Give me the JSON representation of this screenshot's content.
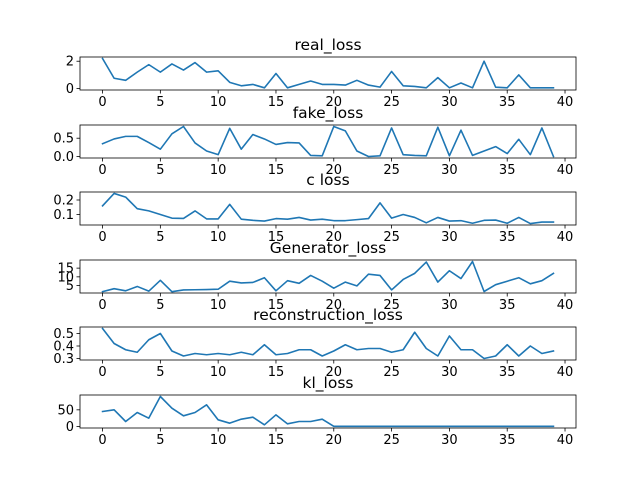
{
  "figure": {
    "line_color": "#1f77b4",
    "background": "#ffffff"
  },
  "chart_data": [
    {
      "type": "line",
      "title": "real_loss",
      "xlabel": "",
      "ylabel": "",
      "x": [
        0,
        1,
        2,
        3,
        4,
        5,
        6,
        7,
        8,
        9,
        10,
        11,
        12,
        13,
        14,
        15,
        16,
        17,
        18,
        19,
        20,
        21,
        22,
        23,
        24,
        25,
        26,
        27,
        28,
        29,
        30,
        31,
        32,
        33,
        34,
        35,
        36,
        37,
        38,
        39
      ],
      "values": [
        2.2,
        0.75,
        0.6,
        1.2,
        1.75,
        1.2,
        1.8,
        1.35,
        1.9,
        1.2,
        1.3,
        0.45,
        0.2,
        0.3,
        0.05,
        1.1,
        0.05,
        0.3,
        0.55,
        0.3,
        0.3,
        0.25,
        0.6,
        0.25,
        0.1,
        1.25,
        0.2,
        0.15,
        0.05,
        0.8,
        0.05,
        0.4,
        0.05,
        2.0,
        0.1,
        0.05,
        1.0,
        0.05,
        0.05,
        0.05
      ],
      "xlim": [
        -1.95,
        40.95
      ],
      "ylim": [
        -0.11,
        2.31
      ],
      "xticks": [
        0,
        5,
        10,
        15,
        20,
        25,
        30,
        35,
        40
      ],
      "yticks": [
        0,
        2
      ]
    },
    {
      "type": "line",
      "title": "fake_loss",
      "xlabel": "",
      "ylabel": "",
      "x": [
        0,
        1,
        2,
        3,
        4,
        5,
        6,
        7,
        8,
        9,
        10,
        11,
        12,
        13,
        14,
        15,
        16,
        17,
        18,
        19,
        20,
        21,
        22,
        23,
        24,
        25,
        26,
        27,
        28,
        29,
        30,
        31,
        32,
        33,
        34,
        35,
        36,
        37,
        38,
        39
      ],
      "values": [
        0.35,
        0.48,
        0.55,
        0.55,
        0.38,
        0.2,
        0.62,
        0.82,
        0.37,
        0.15,
        0.05,
        0.77,
        0.2,
        0.6,
        0.48,
        0.33,
        0.38,
        0.37,
        0.03,
        0.02,
        0.82,
        0.7,
        0.15,
        0.0,
        0.02,
        0.78,
        0.05,
        0.03,
        0.02,
        0.8,
        0.02,
        0.72,
        0.03,
        0.15,
        0.27,
        0.08,
        0.47,
        0.05,
        0.78,
        0.0
      ],
      "xlim": [
        -1.95,
        40.95
      ],
      "ylim": [
        -0.041,
        0.861
      ],
      "xticks": [
        0,
        5,
        10,
        15,
        20,
        25,
        30,
        35,
        40
      ],
      "yticks": [
        0.0,
        0.5
      ]
    },
    {
      "type": "line",
      "title": "c loss",
      "xlabel": "",
      "ylabel": "",
      "x": [
        0,
        1,
        2,
        3,
        4,
        5,
        6,
        7,
        8,
        9,
        10,
        11,
        12,
        13,
        14,
        15,
        16,
        17,
        18,
        19,
        20,
        21,
        22,
        23,
        24,
        25,
        26,
        27,
        28,
        29,
        30,
        31,
        32,
        33,
        34,
        35,
        36,
        37,
        38,
        39
      ],
      "values": [
        0.16,
        0.245,
        0.22,
        0.14,
        0.125,
        0.1,
        0.075,
        0.073,
        0.125,
        0.07,
        0.07,
        0.17,
        0.068,
        0.06,
        0.055,
        0.072,
        0.068,
        0.08,
        0.062,
        0.068,
        0.058,
        0.058,
        0.065,
        0.072,
        0.18,
        0.075,
        0.1,
        0.08,
        0.043,
        0.08,
        0.055,
        0.058,
        0.04,
        0.06,
        0.062,
        0.04,
        0.08,
        0.038,
        0.048,
        0.048
      ],
      "xlim": [
        -1.95,
        40.95
      ],
      "ylim": [
        0.028,
        0.255
      ],
      "xticks": [
        0,
        5,
        10,
        15,
        20,
        25,
        30,
        35,
        40
      ],
      "yticks": [
        0.1,
        0.2
      ]
    },
    {
      "type": "line",
      "title": "Generator_loss",
      "xlabel": "",
      "ylabel": "",
      "x": [
        0,
        1,
        2,
        3,
        4,
        5,
        6,
        7,
        8,
        9,
        10,
        11,
        12,
        13,
        14,
        15,
        16,
        17,
        18,
        19,
        20,
        21,
        22,
        23,
        24,
        25,
        26,
        27,
        28,
        29,
        30,
        31,
        32,
        33,
        34,
        35,
        36,
        37,
        38,
        39
      ],
      "values": [
        1.5,
        3.2,
        2.0,
        4.5,
        1.8,
        8.0,
        1.5,
        2.5,
        2.6,
        2.7,
        2.9,
        7.5,
        6.5,
        6.8,
        9.5,
        2.0,
        7.8,
        6.3,
        10.8,
        7.5,
        3.5,
        7.0,
        4.8,
        11.5,
        10.8,
        2.5,
        8.5,
        12.0,
        18.5,
        7.0,
        13.5,
        9.0,
        18.8,
        1.6,
        5.5,
        7.5,
        9.5,
        6.0,
        7.8,
        12.0
      ],
      "xlim": [
        -1.95,
        40.95
      ],
      "ylim": [
        0.74,
        19.66
      ],
      "xticks": [
        0,
        5,
        10,
        15,
        20,
        25,
        30,
        35,
        40
      ],
      "yticks": [
        5,
        10,
        15
      ]
    },
    {
      "type": "line",
      "title": "reconstruction_loss",
      "xlabel": "",
      "ylabel": "",
      "x": [
        0,
        1,
        2,
        3,
        4,
        5,
        6,
        7,
        8,
        9,
        10,
        11,
        12,
        13,
        14,
        15,
        16,
        17,
        18,
        19,
        20,
        21,
        22,
        23,
        24,
        25,
        26,
        27,
        28,
        29,
        30,
        31,
        32,
        33,
        34,
        35,
        36,
        37,
        38,
        39
      ],
      "values": [
        0.54,
        0.42,
        0.37,
        0.35,
        0.45,
        0.5,
        0.36,
        0.32,
        0.34,
        0.33,
        0.34,
        0.33,
        0.35,
        0.33,
        0.41,
        0.33,
        0.34,
        0.37,
        0.37,
        0.32,
        0.36,
        0.41,
        0.37,
        0.38,
        0.38,
        0.35,
        0.37,
        0.51,
        0.38,
        0.32,
        0.48,
        0.37,
        0.37,
        0.3,
        0.32,
        0.41,
        0.32,
        0.4,
        0.34,
        0.36
      ],
      "xlim": [
        -1.95,
        40.95
      ],
      "ylim": [
        0.288,
        0.552
      ],
      "xticks": [
        0,
        5,
        10,
        15,
        20,
        25,
        30,
        35,
        40
      ],
      "yticks": [
        0.3,
        0.4,
        0.5
      ]
    },
    {
      "type": "line",
      "title": "kl_loss",
      "xlabel": "",
      "ylabel": "",
      "x": [
        0,
        1,
        2,
        3,
        4,
        5,
        6,
        7,
        8,
        9,
        10,
        11,
        12,
        13,
        14,
        15,
        16,
        17,
        18,
        19,
        20,
        21,
        22,
        23,
        24,
        25,
        26,
        27,
        28,
        29,
        30,
        31,
        32,
        33,
        34,
        35,
        36,
        37,
        38,
        39
      ],
      "values": [
        45,
        50,
        15,
        42,
        25,
        90,
        55,
        32,
        42,
        65,
        20,
        10,
        22,
        28,
        5,
        35,
        8,
        15,
        15,
        22,
        0.5,
        0.5,
        0.5,
        0.5,
        0.5,
        0.5,
        0.5,
        0.5,
        0.5,
        0.5,
        0.5,
        0.5,
        0.5,
        0.5,
        0.5,
        0.5,
        0.5,
        0.5,
        0.5,
        0.5
      ],
      "xlim": [
        -1.95,
        40.95
      ],
      "ylim": [
        -4.5,
        94.5
      ],
      "xticks": [
        0,
        5,
        10,
        15,
        20,
        25,
        30,
        35,
        40
      ],
      "yticks": [
        0,
        50
      ]
    }
  ]
}
